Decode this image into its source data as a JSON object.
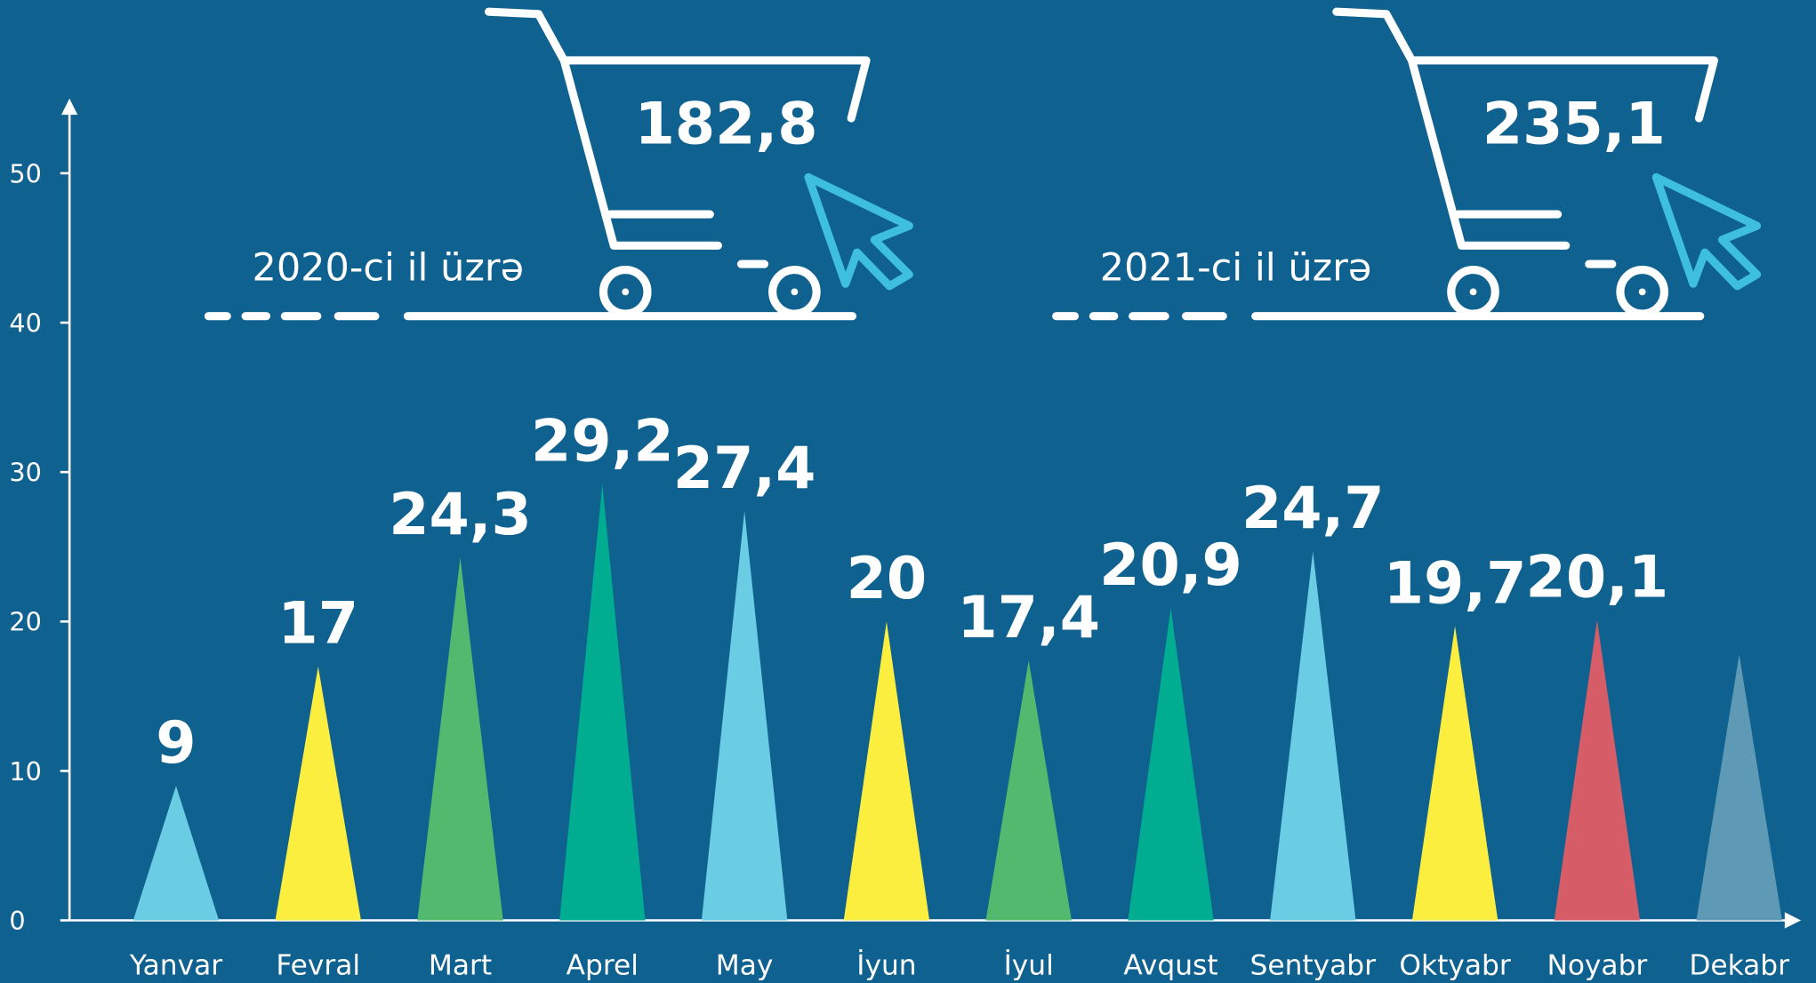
{
  "chart_data": {
    "type": "bar",
    "shape": "triangle",
    "categories": [
      "Yanvar",
      "Fevral",
      "Mart",
      "Aprel",
      "May",
      "İyun",
      "İyul",
      "Avqust",
      "Sentyabr",
      "Oktyabr",
      "Noyabr",
      "Dekabr"
    ],
    "values": [
      9,
      17,
      24.3,
      29.2,
      27.4,
      20,
      17.4,
      20.9,
      24.7,
      19.7,
      20.1,
      17.8
    ],
    "value_labels": [
      "9",
      "17",
      "24,3",
      "29,2",
      "27,4",
      "20",
      "17,4",
      "20,9",
      "24,7",
      "19,7",
      "20,1",
      null
    ],
    "colors": [
      "#6acde3",
      "#fcee3f",
      "#52b96e",
      "#00ad90",
      "#6acde3",
      "#fcee3f",
      "#52b96e",
      "#00ad90",
      "#6acde3",
      "#fcee3f",
      "#d65d68",
      "#5e9ab6"
    ],
    "ylim": [
      0,
      55
    ],
    "yticks": [
      0,
      10,
      20,
      30,
      40,
      50
    ],
    "annotations": [
      {
        "label": "2020-ci il üzrə",
        "value": "182,8"
      },
      {
        "label": "2021-ci il üzrə",
        "value": "235,1"
      }
    ]
  }
}
